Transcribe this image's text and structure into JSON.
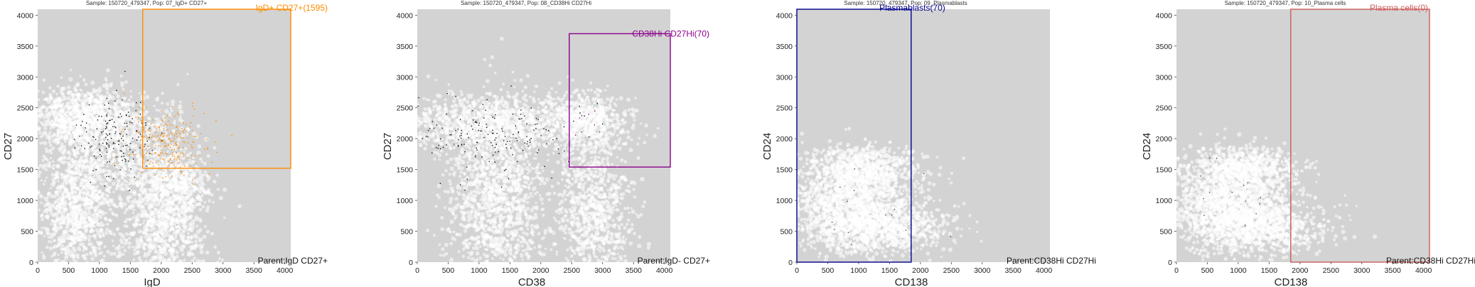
{
  "chart_data": [
    {
      "type": "scatter",
      "title": "Sample: 150720_479347, Pop: 07_IgD+ CD27+",
      "xlabel": "IgD",
      "ylabel": "CD27",
      "xlim": [
        0,
        4096
      ],
      "ylim": [
        0,
        4096
      ],
      "xticks": [
        "0",
        "500",
        "1000",
        "1500",
        "2000",
        "2500",
        "3000",
        "3500",
        "4000"
      ],
      "yticks": [
        "0",
        "500",
        "1000",
        "1500",
        "2000",
        "2500",
        "3000",
        "3500",
        "4000"
      ],
      "background": "#d3d3d3",
      "gate": {
        "name": "IgD+ CD27+(1595)",
        "x": [
          1700,
          4096
        ],
        "y": [
          1520,
          4096
        ],
        "color": "#ff8c00"
      },
      "parent_label": "Parent:IgD CD27+"
    },
    {
      "type": "scatter",
      "title": "Sample: 150720_479347, Pop: 08_CD38Hi CD27Hi",
      "xlabel": "CD38",
      "ylabel": "CD27",
      "xlim": [
        0,
        4096
      ],
      "ylim": [
        0,
        4096
      ],
      "xticks": [
        "0",
        "500",
        "1000",
        "1500",
        "2000",
        "2500",
        "3000",
        "3500",
        "4000"
      ],
      "yticks": [
        "0",
        "500",
        "1000",
        "1500",
        "2000",
        "2500",
        "3000",
        "3500",
        "4000"
      ],
      "background": "#d3d3d3",
      "gate": {
        "name": "CD38Hi CD27Hi(70)",
        "x": [
          2460,
          4096
        ],
        "y": [
          1540,
          3700
        ],
        "color": "#8b008b"
      },
      "parent_label": "Parent:IgD- CD27+"
    },
    {
      "type": "scatter",
      "title": "Sample: 150720_479347, Pop: 09_Plasmablasts",
      "xlabel": "CD138",
      "ylabel": "CD24",
      "xlim": [
        0,
        4096
      ],
      "ylim": [
        0,
        4096
      ],
      "xticks": [
        "0",
        "500",
        "1000",
        "1500",
        "2000",
        "2500",
        "3000",
        "3500",
        "4000"
      ],
      "yticks": [
        "0",
        "500",
        "1000",
        "1500",
        "2000",
        "2500",
        "3000",
        "3500",
        "4000"
      ],
      "background": "#d3d3d3",
      "gate": {
        "name": "Plasmablasts(70)",
        "x": [
          0,
          1850
        ],
        "y": [
          0,
          4096
        ],
        "color": "#00008b"
      },
      "parent_label": "Parent:CD38Hi CD27Hi"
    },
    {
      "type": "scatter",
      "title": "Sample: 150720_479347, Pop: 10_Plasma cells",
      "xlabel": "CD138",
      "ylabel": "CD24",
      "xlim": [
        0,
        4096
      ],
      "ylim": [
        0,
        4096
      ],
      "xticks": [
        "0",
        "500",
        "1000",
        "1500",
        "2000",
        "2500",
        "3000",
        "3500",
        "4000"
      ],
      "yticks": [
        "0",
        "500",
        "1000",
        "1500",
        "2000",
        "2500",
        "3000",
        "3500",
        "4000"
      ],
      "background": "#d3d3d3",
      "gate": {
        "name": "Plasma cells(0)",
        "x": [
          1850,
          4096
        ],
        "y": [
          0,
          4096
        ],
        "color": "#cd5c5c"
      },
      "parent_label": "Parent:CD38Hi CD27Hi"
    }
  ]
}
